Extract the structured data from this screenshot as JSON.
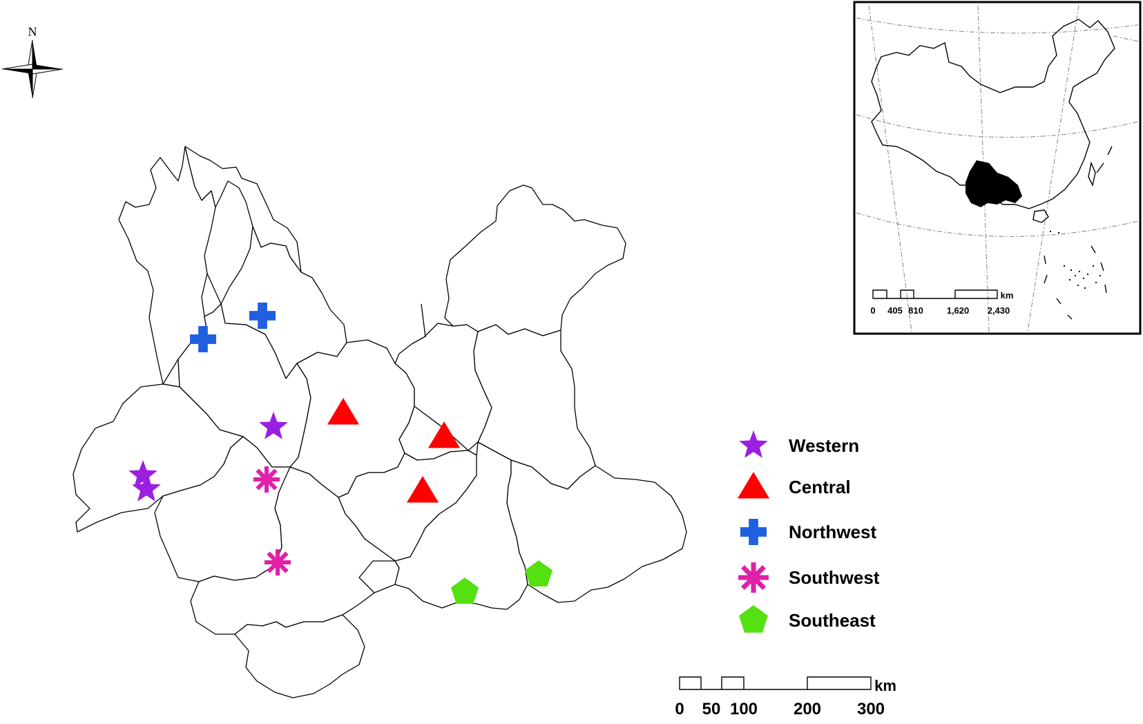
{
  "north_arrow": {
    "label": "N"
  },
  "legend": {
    "items": [
      {
        "key": "western",
        "label": "Western",
        "symbol": "star",
        "color": "#9b1fe0"
      },
      {
        "key": "central",
        "label": "Central",
        "symbol": "triangle",
        "color": "#ff0000"
      },
      {
        "key": "northwest",
        "label": "Northwest",
        "symbol": "cross",
        "color": "#1f5fe0"
      },
      {
        "key": "southwest",
        "label": "Southwest",
        "symbol": "asterisk",
        "color": "#e020a8"
      },
      {
        "key": "southeast",
        "label": "Southeast",
        "symbol": "pentagon",
        "color": "#55e011"
      }
    ]
  },
  "scale_bar": {
    "unit": "km",
    "ticks": [
      "0",
      "50",
      "100",
      "200",
      "300"
    ]
  },
  "inset": {
    "scale_bar": {
      "unit": "km",
      "ticks": [
        "0",
        "405",
        "810",
        "1,620",
        "2,430"
      ]
    }
  },
  "sites": {
    "western": [
      {
        "id": "w1"
      },
      {
        "id": "w2"
      },
      {
        "id": "w3"
      }
    ],
    "central": [
      {
        "id": "c1"
      },
      {
        "id": "c2"
      },
      {
        "id": "c3"
      }
    ],
    "northwest": [
      {
        "id": "n1"
      },
      {
        "id": "n2"
      }
    ],
    "southwest": [
      {
        "id": "s1"
      },
      {
        "id": "s2"
      }
    ],
    "southeast": [
      {
        "id": "e1"
      },
      {
        "id": "e2"
      }
    ]
  }
}
